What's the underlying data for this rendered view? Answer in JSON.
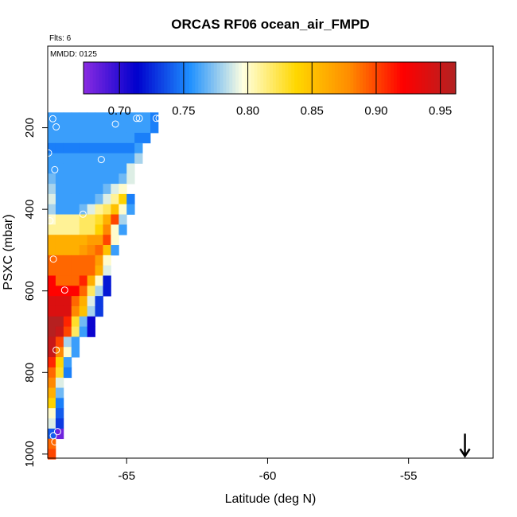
{
  "chart_data": {
    "type": "heatmap",
    "title": "ORCAS RF06 ocean_air_FMPD",
    "xlabel": "Latitude (deg N)",
    "ylabel": "PSXC (mbar)",
    "flights_note": "Flts: 6",
    "date_note": "MMDD: 0125",
    "xlim": [
      -67.8,
      -52.0
    ],
    "ylim": [
      1010,
      0
    ],
    "x_ticks": [
      -65,
      -60,
      -55
    ],
    "x_tick_labels": [
      "-65",
      "-60",
      "-55"
    ],
    "y_ticks": [
      200,
      400,
      600,
      800,
      1000
    ],
    "y_tick_labels": [
      "200",
      "400",
      "600",
      "800",
      "1000"
    ],
    "colorbar": {
      "min": 0.672,
      "max": 0.962,
      "ticks": [
        0.7,
        0.75,
        0.8,
        0.85,
        0.9,
        0.95
      ],
      "tick_labels": [
        "0.70",
        "0.75",
        "0.80",
        "0.85",
        "0.90",
        "0.95"
      ],
      "colors": [
        "#8a2be2",
        "#0000cd",
        "#1e90ff",
        "#ffffe0",
        "#ffd700",
        "#ff8c00",
        "#ff0000",
        "#b22222"
      ]
    },
    "bin_widths": {
      "lat": 0.28,
      "pressure": 25
    },
    "cells": [
      {
        "p": 175,
        "lats": [
          -67.8,
          -67.52,
          -67.24,
          -66.96,
          -66.68,
          -66.4,
          -66.12,
          -65.84,
          -65.56,
          -65.28,
          -65.0,
          -64.72,
          -64.44,
          -64.16
        ],
        "v": [
          0.76,
          0.76,
          0.76,
          0.76,
          0.76,
          0.76,
          0.76,
          0.76,
          0.76,
          0.76,
          0.76,
          0.76,
          0.76,
          0.75
        ]
      },
      {
        "p": 200,
        "lats": [
          -67.8,
          -67.52,
          -67.24,
          -66.96,
          -66.68,
          -66.4,
          -66.12,
          -65.84,
          -65.56,
          -65.28,
          -65.0,
          -64.72,
          -64.44,
          -64.16
        ],
        "v": [
          0.76,
          0.76,
          0.76,
          0.76,
          0.76,
          0.76,
          0.76,
          0.76,
          0.76,
          0.76,
          0.76,
          0.76,
          0.76,
          0.75
        ]
      },
      {
        "p": 225,
        "lats": [
          -67.8,
          -67.52,
          -67.24,
          -66.96,
          -66.68,
          -66.4,
          -66.12,
          -65.84,
          -65.56,
          -65.28,
          -65.0,
          -64.72,
          -64.44
        ],
        "v": [
          0.76,
          0.76,
          0.76,
          0.76,
          0.76,
          0.76,
          0.76,
          0.76,
          0.76,
          0.76,
          0.76,
          0.75,
          0.75
        ]
      },
      {
        "p": 250,
        "lats": [
          -67.8,
          -67.52,
          -67.24,
          -66.96,
          -66.68,
          -66.4,
          -66.12,
          -65.84,
          -65.56,
          -65.28,
          -65.0,
          -64.72
        ],
        "v": [
          0.75,
          0.75,
          0.75,
          0.75,
          0.75,
          0.75,
          0.75,
          0.75,
          0.75,
          0.75,
          0.75,
          0.76
        ]
      },
      {
        "p": 275,
        "lats": [
          -67.8,
          -67.52,
          -67.24,
          -66.96,
          -66.68,
          -66.4,
          -66.12,
          -65.84,
          -65.56,
          -65.28,
          -65.0,
          -64.72
        ],
        "v": [
          0.76,
          0.76,
          0.76,
          0.76,
          0.76,
          0.76,
          0.76,
          0.76,
          0.76,
          0.76,
          0.76,
          0.78
        ]
      },
      {
        "p": 300,
        "lats": [
          -67.8,
          -67.52,
          -67.24,
          -66.96,
          -66.68,
          -66.4,
          -66.12,
          -65.84,
          -65.56,
          -65.28,
          -65.0
        ],
        "v": [
          0.76,
          0.76,
          0.76,
          0.76,
          0.76,
          0.76,
          0.76,
          0.76,
          0.76,
          0.76,
          0.79
        ]
      },
      {
        "p": 325,
        "lats": [
          -67.8,
          -67.52,
          -67.24,
          -66.96,
          -66.68,
          -66.4,
          -66.12,
          -65.84,
          -65.56,
          -65.28,
          -65.0
        ],
        "v": [
          0.77,
          0.76,
          0.76,
          0.76,
          0.76,
          0.76,
          0.76,
          0.76,
          0.76,
          0.77,
          0.79
        ]
      },
      {
        "p": 350,
        "lats": [
          -67.8,
          -67.52,
          -67.24,
          -66.96,
          -66.68,
          -66.4,
          -66.12,
          -65.84,
          -65.56,
          -65.28
        ],
        "v": [
          0.78,
          0.76,
          0.76,
          0.76,
          0.76,
          0.76,
          0.76,
          0.77,
          0.79,
          0.8
        ]
      },
      {
        "p": 375,
        "lats": [
          -67.8,
          -67.52,
          -67.24,
          -66.96,
          -66.68,
          -66.4,
          -66.12,
          -65.84,
          -65.56,
          -65.28,
          -65.0
        ],
        "v": [
          0.79,
          0.76,
          0.76,
          0.76,
          0.76,
          0.76,
          0.77,
          0.79,
          0.81,
          0.84,
          0.75
        ]
      },
      {
        "p": 400,
        "lats": [
          -67.8,
          -67.52,
          -67.24,
          -66.96,
          -66.68,
          -66.4,
          -66.12,
          -65.84,
          -65.56,
          -65.28,
          -65.0
        ],
        "v": [
          0.78,
          0.76,
          0.76,
          0.76,
          0.77,
          0.79,
          0.81,
          0.82,
          0.85,
          0.8,
          0.76
        ]
      },
      {
        "p": 425,
        "lats": [
          -67.8,
          -67.52,
          -67.24,
          -66.96,
          -66.68,
          -66.4,
          -66.12,
          -65.84,
          -65.56,
          -65.28
        ],
        "v": [
          0.8,
          0.81,
          0.81,
          0.81,
          0.82,
          0.82,
          0.83,
          0.86,
          0.9,
          0.78
        ]
      },
      {
        "p": 450,
        "lats": [
          -67.8,
          -67.52,
          -67.24,
          -66.96,
          -66.68,
          -66.4,
          -66.12,
          -65.84,
          -65.56,
          -65.28
        ],
        "v": [
          0.81,
          0.81,
          0.81,
          0.81,
          0.82,
          0.82,
          0.84,
          0.88,
          0.8,
          0.76
        ]
      },
      {
        "p": 475,
        "lats": [
          -67.8,
          -67.52,
          -67.24,
          -66.96,
          -66.68,
          -66.4,
          -66.12,
          -65.84,
          -65.56
        ],
        "v": [
          0.86,
          0.86,
          0.86,
          0.86,
          0.86,
          0.87,
          0.87,
          0.9,
          0.8
        ]
      },
      {
        "p": 500,
        "lats": [
          -67.8,
          -67.52,
          -67.24,
          -66.96,
          -66.68,
          -66.4,
          -66.12,
          -65.84,
          -65.56
        ],
        "v": [
          0.86,
          0.86,
          0.86,
          0.86,
          0.87,
          0.88,
          0.89,
          0.85,
          0.76
        ]
      },
      {
        "p": 525,
        "lats": [
          -67.8,
          -67.52,
          -67.24,
          -66.96,
          -66.68,
          -66.4,
          -66.12,
          -65.84
        ],
        "v": [
          0.89,
          0.89,
          0.89,
          0.89,
          0.89,
          0.89,
          0.87,
          0.8
        ]
      },
      {
        "p": 550,
        "lats": [
          -67.8,
          -67.52,
          -67.24,
          -66.96,
          -66.68,
          -66.4,
          -66.12,
          -65.84
        ],
        "v": [
          0.89,
          0.89,
          0.89,
          0.89,
          0.89,
          0.89,
          0.86,
          0.79
        ]
      },
      {
        "p": 575,
        "lats": [
          -67.8,
          -67.52,
          -67.24,
          -66.96,
          -66.68,
          -66.4,
          -66.12,
          -65.84
        ],
        "v": [
          0.92,
          0.89,
          0.89,
          0.89,
          0.91,
          0.86,
          0.8,
          0.72
        ]
      },
      {
        "p": 600,
        "lats": [
          -67.8,
          -67.52,
          -67.24,
          -66.96,
          -66.68,
          -66.4,
          -66.12,
          -65.84
        ],
        "v": [
          0.92,
          0.92,
          0.92,
          0.92,
          0.89,
          0.82,
          0.78,
          0.72
        ]
      },
      {
        "p": 625,
        "lats": [
          -67.8,
          -67.52,
          -67.24,
          -66.96,
          -66.68,
          -66.4,
          -66.12
        ],
        "v": [
          0.94,
          0.94,
          0.94,
          0.89,
          0.86,
          0.79,
          0.73
        ]
      },
      {
        "p": 650,
        "lats": [
          -67.8,
          -67.52,
          -67.24,
          -66.96,
          -66.68,
          -66.4,
          -66.12
        ],
        "v": [
          0.94,
          0.94,
          0.94,
          0.88,
          0.85,
          0.78,
          0.73
        ]
      },
      {
        "p": 675,
        "lats": [
          -67.8,
          -67.52,
          -67.24,
          -66.96,
          -66.68,
          -66.4
        ],
        "v": [
          0.96,
          0.96,
          0.91,
          0.83,
          0.77,
          0.71
        ]
      },
      {
        "p": 700,
        "lats": [
          -67.8,
          -67.52,
          -67.24,
          -66.96,
          -66.68,
          -66.4
        ],
        "v": [
          0.96,
          0.95,
          0.9,
          0.82,
          0.76,
          0.71
        ]
      },
      {
        "p": 725,
        "lats": [
          -67.8,
          -67.52,
          -67.24,
          -66.96
        ],
        "v": [
          0.95,
          0.9,
          0.78,
          0.76
        ]
      },
      {
        "p": 750,
        "lats": [
          -67.8,
          -67.52,
          -67.24,
          -66.96
        ],
        "v": [
          0.95,
          0.88,
          0.8,
          0.76
        ]
      },
      {
        "p": 775,
        "lats": [
          -67.8,
          -67.52,
          -67.24
        ],
        "v": [
          0.91,
          0.84,
          0.76
        ]
      },
      {
        "p": 800,
        "lats": [
          -67.8,
          -67.52,
          -67.24
        ],
        "v": [
          0.89,
          0.83,
          0.75
        ]
      },
      {
        "p": 825,
        "lats": [
          -67.8,
          -67.52
        ],
        "v": [
          0.88,
          0.79
        ]
      },
      {
        "p": 850,
        "lats": [
          -67.8,
          -67.52
        ],
        "v": [
          0.86,
          0.77
        ]
      },
      {
        "p": 875,
        "lats": [
          -67.8,
          -67.52
        ],
        "v": [
          0.84,
          0.75
        ]
      },
      {
        "p": 900,
        "lats": [
          -67.8,
          -67.52
        ],
        "v": [
          0.8,
          0.74
        ]
      },
      {
        "p": 925,
        "lats": [
          -67.8,
          -67.52
        ],
        "v": [
          0.79,
          0.73
        ]
      },
      {
        "p": 950,
        "lats": [
          -67.8,
          -67.52
        ],
        "v": [
          0.74,
          0.68
        ]
      },
      {
        "p": 975,
        "lats": [
          -67.8
        ],
        "v": [
          0.89
        ]
      },
      {
        "p": 1000,
        "lats": [
          -67.8
        ],
        "v": [
          0.9
        ]
      }
    ],
    "markers": [
      {
        "lat": -67.62,
        "p": 178
      },
      {
        "lat": -67.5,
        "p": 198
      },
      {
        "lat": -65.4,
        "p": 191
      },
      {
        "lat": -64.65,
        "p": 177
      },
      {
        "lat": -64.55,
        "p": 177
      },
      {
        "lat": -63.95,
        "p": 177
      },
      {
        "lat": -63.85,
        "p": 177
      },
      {
        "lat": -67.85,
        "p": 262
      },
      {
        "lat": -65.9,
        "p": 278
      },
      {
        "lat": -67.55,
        "p": 303
      },
      {
        "lat": -66.55,
        "p": 412
      },
      {
        "lat": -67.72,
        "p": 428
      },
      {
        "lat": -67.6,
        "p": 522
      },
      {
        "lat": -67.2,
        "p": 598
      },
      {
        "lat": -67.5,
        "p": 745
      },
      {
        "lat": -67.45,
        "p": 945
      },
      {
        "lat": -67.6,
        "p": 955
      },
      {
        "lat": -67.55,
        "p": 970
      }
    ],
    "direction_arrow": {
      "lat": -53.0,
      "p_from": 950,
      "p_to": 1005
    }
  }
}
